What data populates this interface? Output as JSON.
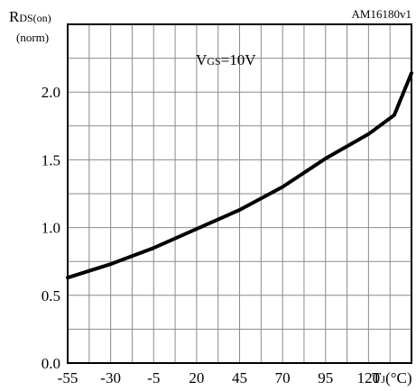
{
  "chart_data": {
    "type": "line",
    "figure_id": "AM16180v1",
    "ylabel_main": "R",
    "ylabel_sub": "DS(on)",
    "ylabel_unit": "(norm)",
    "xlabel_main": "T",
    "xlabel_sub": "J",
    "xlabel_unit": "(°C)",
    "annotation_main": "V",
    "annotation_sub": "GS",
    "annotation_value": "=10V",
    "x_ticks": [
      "-55",
      "-30",
      "-5",
      "20",
      "45",
      "70",
      "95",
      "120"
    ],
    "y_ticks": [
      "0.0",
      "0.5",
      "1.0",
      "1.5",
      "2.0"
    ],
    "xlim": [
      -55,
      145
    ],
    "ylim": [
      0,
      2.5
    ],
    "grid": true,
    "series": [
      {
        "x": [
          -55,
          -45,
          -30,
          -5,
          20,
          45,
          70,
          95,
          120,
          135,
          145
        ],
        "values": [
          0.63,
          0.67,
          0.73,
          0.85,
          0.99,
          1.13,
          1.3,
          1.51,
          1.69,
          1.83,
          2.14
        ]
      }
    ]
  }
}
